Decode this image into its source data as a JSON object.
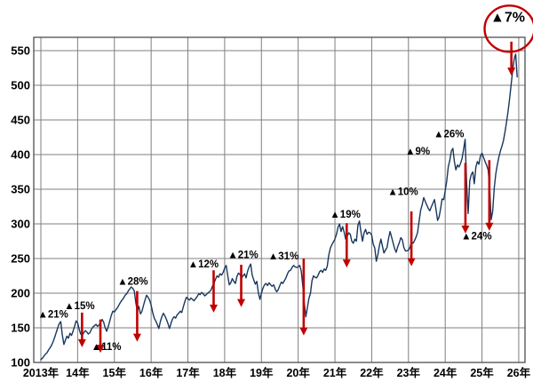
{
  "chart_data": {
    "type": "line",
    "title": "",
    "xlabel": "",
    "ylabel": "",
    "x_start_year": 2013,
    "points_per_year": 24,
    "x_tick_labels": [
      "2013年",
      "14年",
      "15年",
      "16年",
      "17年",
      "18年",
      "19年",
      "20年",
      "21年",
      "22年",
      "23年",
      "24年",
      "25年",
      "26年"
    ],
    "y_ticks": [
      100,
      150,
      200,
      250,
      300,
      350,
      400,
      450,
      500,
      550
    ],
    "ylim": [
      100,
      550
    ],
    "grid": true,
    "legend": "none",
    "line_color": "#17375e",
    "arrow_color": "#c00000",
    "highlight_circle_color": "#c00000",
    "values": [
      104,
      106,
      109,
      112,
      114,
      118,
      121,
      125,
      130,
      136,
      143,
      150,
      156,
      159,
      140,
      126,
      132,
      138,
      135,
      142,
      139,
      145,
      152,
      160,
      157,
      148,
      141,
      139,
      143,
      146,
      144,
      141,
      143,
      148,
      151,
      153,
      155,
      152,
      154,
      158,
      162,
      158,
      150,
      145,
      152,
      160,
      168,
      174,
      173,
      176,
      179,
      183,
      187,
      190,
      193,
      197,
      199,
      203,
      206,
      209,
      207,
      203,
      186,
      174,
      181,
      170,
      174,
      182,
      190,
      197,
      194,
      190,
      183,
      172,
      164,
      160,
      155,
      149,
      159,
      166,
      171,
      167,
      162,
      156,
      149,
      157,
      163,
      166,
      164,
      169,
      171,
      174,
      172,
      180,
      188,
      194,
      192,
      190,
      193,
      191,
      189,
      192,
      195,
      199,
      198,
      201,
      199,
      196,
      198,
      200,
      202,
      204,
      210,
      214,
      220,
      225,
      223,
      228,
      226,
      230,
      236,
      240,
      226,
      212,
      215,
      221,
      217,
      214,
      224,
      229,
      227,
      222,
      225,
      228,
      222,
      232,
      238,
      242,
      226,
      219,
      213,
      217,
      201,
      191,
      200,
      207,
      212,
      214,
      211,
      215,
      212,
      210,
      212,
      206,
      202,
      205,
      211,
      216,
      214,
      218,
      222,
      228,
      232,
      233,
      237,
      240,
      238,
      237,
      238,
      240,
      232,
      211,
      185,
      166,
      179,
      192,
      200,
      218,
      225,
      223,
      222,
      226,
      231,
      233,
      230,
      235,
      233,
      239,
      255,
      265,
      270,
      274,
      278,
      285,
      295,
      300,
      289,
      296,
      288,
      278,
      282,
      287,
      285,
      275,
      272,
      278,
      275,
      298,
      304,
      288,
      275,
      287,
      292,
      285,
      288,
      287,
      284,
      271,
      265,
      246,
      255,
      268,
      278,
      268,
      258,
      262,
      266,
      279,
      289,
      281,
      272,
      264,
      259,
      267,
      273,
      280,
      277,
      266,
      261,
      261,
      262,
      266,
      274,
      272,
      276,
      281,
      288,
      305,
      320,
      328,
      338,
      332,
      327,
      322,
      319,
      325,
      330,
      335,
      321,
      305,
      310,
      322,
      336,
      335,
      348,
      362,
      382,
      392,
      405,
      409,
      390,
      378,
      385,
      382,
      387,
      394,
      408,
      422,
      358,
      315,
      362,
      371,
      375,
      358,
      382,
      390,
      386,
      398,
      402,
      396,
      390,
      385,
      378,
      352,
      306,
      318,
      352,
      372,
      385,
      396,
      405,
      412,
      420,
      432,
      446,
      462,
      480,
      500,
      520,
      538,
      545,
      512
    ],
    "annotations": [
      {
        "label": "▲21%",
        "t": 2013.33,
        "v": 170
      },
      {
        "label": "▲15%",
        "t": 2014.05,
        "v": 182
      },
      {
        "label": "▲11%",
        "t": 2014.78,
        "v": 123
      },
      {
        "label": "▲28%",
        "t": 2015.5,
        "v": 217
      },
      {
        "label": "▲12%",
        "t": 2017.42,
        "v": 242
      },
      {
        "label": "▲21%",
        "t": 2018.5,
        "v": 256
      },
      {
        "label": "▲31%",
        "t": 2019.6,
        "v": 254
      },
      {
        "label": "▲19%",
        "t": 2021.28,
        "v": 314
      },
      {
        "label": "▲10%",
        "t": 2022.85,
        "v": 347
      },
      {
        "label": "▲9%",
        "t": 2023.25,
        "v": 405
      },
      {
        "label": "▲26%",
        "t": 2024.1,
        "v": 430
      },
      {
        "label": "▲24%",
        "t": 2024.85,
        "v": 283
      },
      {
        "label": "▲7%",
        "t": 2025.7,
        "v": 597,
        "circled": true,
        "large": true
      }
    ],
    "drop_arrows": [
      {
        "t": 2014.12,
        "from": 172,
        "to": 122
      },
      {
        "t": 2014.62,
        "from": 162,
        "to": 114
      },
      {
        "t": 2015.62,
        "from": 203,
        "to": 130
      },
      {
        "t": 2017.7,
        "from": 233,
        "to": 172
      },
      {
        "t": 2018.45,
        "from": 241,
        "to": 180
      },
      {
        "t": 2020.15,
        "from": 250,
        "to": 139
      },
      {
        "t": 2021.32,
        "from": 301,
        "to": 237
      },
      {
        "t": 2023.08,
        "from": 318,
        "to": 239
      },
      {
        "t": 2024.55,
        "from": 388,
        "to": 286
      },
      {
        "t": 2025.2,
        "from": 392,
        "to": 290
      },
      {
        "t": 2025.8,
        "from": 563,
        "to": 514
      }
    ]
  }
}
